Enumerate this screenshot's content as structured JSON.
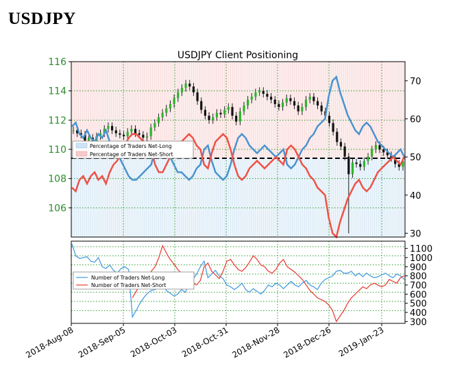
{
  "page_title": "USDJPY",
  "chart_data": [
    {
      "type": "line",
      "title": "USDJPY Client Positioning",
      "x_ticks": [
        "2018-Aug-08",
        "2018-Sep-05",
        "2018-Oct-03",
        "2018-Oct-31",
        "2018-Nov-28",
        "2018-Dec-26",
        "2019-Jan-23"
      ],
      "y_left_ticks": [
        106,
        108,
        110,
        112,
        114,
        116
      ],
      "y_left_lim": [
        104,
        116
      ],
      "y_right_ticks": [
        30,
        40,
        50,
        60,
        70
      ],
      "y_right_lim": [
        29,
        75
      ],
      "reference_line_right": 50,
      "grid": true,
      "legend_position": "center-left",
      "legend": [
        "Percentage of Traders Net-Long",
        "Percentage of Traders Net-Short"
      ],
      "price_candles_approx": [
        111.3,
        111.1,
        111.0,
        110.6,
        110.8,
        110.5,
        110.9,
        111.1,
        111.4,
        111.6,
        111.3,
        111.1,
        111.0,
        110.9,
        111.2,
        111.4,
        111.1,
        111.0,
        110.8,
        110.9,
        111.5,
        111.8,
        112.2,
        112.5,
        112.8,
        113.1,
        113.5,
        113.9,
        114.2,
        114.5,
        114.3,
        113.9,
        113.3,
        112.7,
        112.3,
        112.0,
        112.2,
        112.5,
        112.4,
        112.7,
        112.9,
        112.3,
        111.9,
        112.6,
        113.0,
        113.4,
        113.6,
        113.9,
        114.0,
        113.8,
        113.6,
        113.4,
        113.1,
        112.9,
        113.2,
        113.5,
        113.3,
        113.0,
        112.6,
        112.9,
        113.4,
        113.6,
        113.3,
        113.0,
        112.6,
        112.3,
        111.8,
        111.2,
        110.5,
        110.2,
        109.5,
        108.3,
        109.1,
        109.0,
        108.8,
        109.2,
        109.5,
        110.0,
        110.3,
        110.0,
        109.8,
        109.6,
        109.4,
        109.0,
        108.8,
        109.2
      ],
      "net_long_pct_approx": [
        58,
        59,
        56,
        55,
        57,
        55,
        54,
        56,
        55,
        57,
        54,
        52,
        51,
        49,
        47,
        45,
        44,
        44,
        45,
        46,
        47,
        48,
        52,
        54,
        54,
        52,
        50,
        48,
        46,
        46,
        45,
        44,
        45,
        47,
        48,
        52,
        53,
        49,
        46,
        45,
        44,
        45,
        48,
        52,
        55,
        56,
        55,
        53,
        52,
        51,
        52,
        53,
        52,
        51,
        50,
        51,
        52,
        48,
        47,
        48,
        50,
        52,
        53,
        55,
        56,
        58,
        59,
        60,
        66,
        70,
        71,
        67,
        64,
        61,
        59,
        57,
        56,
        58,
        59,
        58,
        56,
        54,
        53,
        52,
        51,
        50,
        51,
        52,
        50
      ],
      "net_short_pct_approx": [
        42,
        41,
        44,
        45,
        43,
        45,
        46,
        44,
        45,
        43,
        46,
        48,
        49,
        51,
        53,
        55,
        56,
        56,
        55,
        54,
        53,
        52,
        48,
        46,
        46,
        48,
        50,
        52,
        54,
        54,
        55,
        56,
        55,
        53,
        52,
        48,
        47,
        51,
        54,
        55,
        56,
        55,
        52,
        48,
        45,
        44,
        45,
        47,
        48,
        49,
        48,
        47,
        48,
        49,
        50,
        49,
        48,
        52,
        53,
        52,
        50,
        48,
        47,
        45,
        44,
        42,
        41,
        40,
        34,
        30,
        29,
        33,
        36,
        39,
        41,
        43,
        44,
        42,
        41,
        42,
        44,
        46,
        47,
        48,
        49,
        50,
        49,
        48,
        50
      ]
    },
    {
      "type": "line",
      "title": "",
      "y_right_ticks": [
        300,
        400,
        500,
        600,
        700,
        800,
        900,
        1000,
        1100
      ],
      "y_right_lim": [
        280,
        1180
      ],
      "grid": true,
      "legend_position": "center-left",
      "series": [
        {
          "name": "Number of Traders Net-Long",
          "color": "#4c9ee0",
          "values": [
            1150,
            1020,
            990,
            1000,
            1010,
            960,
            950,
            1000,
            900,
            880,
            920,
            860,
            830,
            880,
            900,
            870,
            350,
            420,
            500,
            560,
            610,
            640,
            650,
            680,
            700,
            640,
            610,
            580,
            600,
            650,
            620,
            720,
            760,
            820,
            900,
            960,
            780,
            820,
            860,
            800,
            770,
            700,
            680,
            650,
            680,
            720,
            650,
            620,
            660,
            630,
            600,
            640,
            700,
            680,
            720,
            700,
            660,
            700,
            740,
            700,
            680,
            720,
            750,
            700,
            680,
            650,
            720,
            760,
            780,
            800,
            850,
            860,
            830,
            830,
            850,
            800,
            830,
            790,
            830,
            800,
            780,
            790,
            810,
            830,
            800,
            780,
            820,
            800,
            760
          ]
        },
        {
          "name": "Number of Traders Net-Short",
          "color": "#e8443a",
          "values": [
            null,
            null,
            null,
            null,
            null,
            null,
            null,
            null,
            null,
            null,
            null,
            null,
            null,
            null,
            null,
            null,
            560,
            630,
            700,
            720,
            780,
            850,
            900,
            1000,
            1130,
            1050,
            980,
            930,
            870,
            830,
            820,
            760,
            720,
            700,
            750,
            900,
            940,
            850,
            810,
            770,
            850,
            960,
            980,
            920,
            870,
            850,
            890,
            950,
            1020,
            980,
            920,
            900,
            850,
            830,
            870,
            940,
            980,
            900,
            870,
            840,
            800,
            760,
            700,
            640,
            600,
            560,
            540,
            520,
            480,
            420,
            300,
            360,
            420,
            500,
            560,
            600,
            640,
            680,
            660,
            700,
            720,
            700,
            680,
            700,
            760,
            740,
            720,
            780,
            800
          ]
        }
      ]
    }
  ]
}
